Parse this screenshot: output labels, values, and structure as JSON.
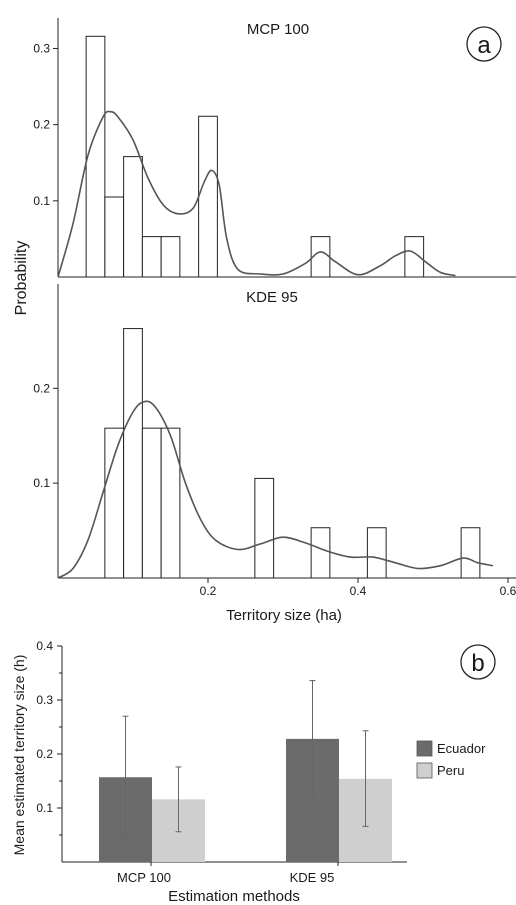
{
  "chart_data": [
    {
      "type": "bar",
      "title": "MCP 100",
      "panel_label": "a",
      "ylabel": "Probability",
      "bin_width": 0.025,
      "bins": [
        {
          "x": 0.05,
          "value": 0.316
        },
        {
          "x": 0.075,
          "value": 0.105
        },
        {
          "x": 0.1,
          "value": 0.158
        },
        {
          "x": 0.125,
          "value": 0.053
        },
        {
          "x": 0.15,
          "value": 0.053
        },
        {
          "x": 0.2,
          "value": 0.211
        },
        {
          "x": 0.35,
          "value": 0.053
        },
        {
          "x": 0.475,
          "value": 0.053
        }
      ],
      "density_curve": [
        [
          0.0,
          0.0
        ],
        [
          0.02,
          0.07
        ],
        [
          0.04,
          0.16
        ],
        [
          0.06,
          0.21
        ],
        [
          0.07,
          0.217
        ],
        [
          0.08,
          0.21
        ],
        [
          0.1,
          0.18
        ],
        [
          0.12,
          0.13
        ],
        [
          0.14,
          0.095
        ],
        [
          0.16,
          0.083
        ],
        [
          0.18,
          0.09
        ],
        [
          0.195,
          0.125
        ],
        [
          0.205,
          0.14
        ],
        [
          0.215,
          0.12
        ],
        [
          0.225,
          0.05
        ],
        [
          0.24,
          0.01
        ],
        [
          0.27,
          0.004
        ],
        [
          0.3,
          0.004
        ],
        [
          0.33,
          0.018
        ],
        [
          0.35,
          0.033
        ],
        [
          0.37,
          0.02
        ],
        [
          0.4,
          0.003
        ],
        [
          0.43,
          0.015
        ],
        [
          0.45,
          0.028
        ],
        [
          0.47,
          0.034
        ],
        [
          0.49,
          0.02
        ],
        [
          0.51,
          0.006
        ],
        [
          0.53,
          0.002
        ]
      ],
      "yticks": [
        "0.1",
        "0.2",
        "0.3"
      ],
      "ylim": [
        0,
        0.34
      ],
      "xlim": [
        0,
        0.6
      ]
    },
    {
      "type": "bar",
      "title": "KDE 95",
      "ylabel": "Probability",
      "xlabel": "Territory size (ha)",
      "bin_width": 0.025,
      "bins": [
        {
          "x": 0.075,
          "value": 0.158
        },
        {
          "x": 0.1,
          "value": 0.263
        },
        {
          "x": 0.125,
          "value": 0.158
        },
        {
          "x": 0.15,
          "value": 0.158
        },
        {
          "x": 0.275,
          "value": 0.105
        },
        {
          "x": 0.35,
          "value": 0.053
        },
        {
          "x": 0.425,
          "value": 0.053
        },
        {
          "x": 0.55,
          "value": 0.053
        }
      ],
      "density_curve": [
        [
          0.0,
          0.0
        ],
        [
          0.02,
          0.01
        ],
        [
          0.04,
          0.04
        ],
        [
          0.06,
          0.09
        ],
        [
          0.08,
          0.14
        ],
        [
          0.1,
          0.175
        ],
        [
          0.115,
          0.186
        ],
        [
          0.13,
          0.18
        ],
        [
          0.15,
          0.15
        ],
        [
          0.17,
          0.1
        ],
        [
          0.19,
          0.062
        ],
        [
          0.21,
          0.04
        ],
        [
          0.24,
          0.03
        ],
        [
          0.27,
          0.036
        ],
        [
          0.3,
          0.043
        ],
        [
          0.33,
          0.037
        ],
        [
          0.36,
          0.028
        ],
        [
          0.39,
          0.022
        ],
        [
          0.42,
          0.022
        ],
        [
          0.45,
          0.016
        ],
        [
          0.48,
          0.01
        ],
        [
          0.51,
          0.013
        ],
        [
          0.54,
          0.021
        ],
        [
          0.56,
          0.016
        ],
        [
          0.58,
          0.013
        ]
      ],
      "yticks": [
        "0.1",
        "0.2"
      ],
      "xticks": [
        "0.2",
        "0.4",
        "0.6"
      ],
      "ylim": [
        0,
        0.31
      ],
      "xlim": [
        0,
        0.6
      ]
    },
    {
      "type": "bar",
      "panel_label": "b",
      "categories": [
        "MCP 100",
        "KDE 95"
      ],
      "series": [
        {
          "name": "Ecuador",
          "values": [
            0.157,
            0.228
          ],
          "err_low": [
            0.045,
            0.123
          ],
          "err_high": [
            0.27,
            0.336
          ],
          "color": "#6b6b6b"
        },
        {
          "name": "Peru",
          "values": [
            0.116,
            0.154
          ],
          "err_low": [
            0.056,
            0.066
          ],
          "err_high": [
            0.176,
            0.243
          ],
          "color": "#cfcfcf"
        }
      ],
      "xlabel": "Estimation methods",
      "ylabel": "Mean estimated territory size (h)",
      "yticks": [
        "0.1",
        "0.2",
        "0.3",
        "0.4"
      ],
      "ylim": [
        0,
        0.4
      ],
      "legend_position": "right"
    }
  ]
}
